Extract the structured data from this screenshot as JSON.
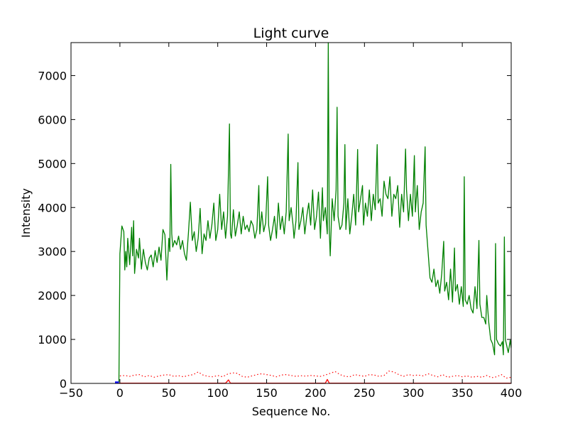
{
  "chart_data": {
    "type": "line",
    "title": "Light curve",
    "xlabel": "Sequence No.",
    "ylabel": "Intensity",
    "xlim": [
      -50,
      400
    ],
    "ylim": [
      0,
      7750
    ],
    "xticks": [
      -50,
      0,
      50,
      100,
      150,
      200,
      250,
      300,
      350,
      400
    ],
    "yticks": [
      0,
      1000,
      2000,
      3000,
      4000,
      5000,
      6000,
      7000
    ],
    "xtick_labels": [
      "−50",
      "0",
      "50",
      "100",
      "150",
      "200",
      "250",
      "300",
      "350",
      "400"
    ],
    "ytick_labels": [
      "0",
      "1000",
      "2000",
      "3000",
      "4000",
      "5000",
      "6000",
      "7000"
    ],
    "grid": false,
    "series": [
      {
        "color": "#008000",
        "style": "solid",
        "points": [
          [
            -1,
            30
          ],
          [
            0,
            2950
          ],
          [
            2,
            3580
          ],
          [
            4,
            3450
          ],
          [
            5,
            2580
          ],
          [
            6,
            3000
          ],
          [
            7,
            2650
          ],
          [
            8,
            3300
          ],
          [
            10,
            2700
          ],
          [
            12,
            3550
          ],
          [
            13,
            2900
          ],
          [
            14,
            3700
          ],
          [
            15,
            2500
          ],
          [
            17,
            3050
          ],
          [
            19,
            2850
          ],
          [
            20,
            3300
          ],
          [
            22,
            2600
          ],
          [
            24,
            3050
          ],
          [
            26,
            2750
          ],
          [
            28,
            2580
          ],
          [
            30,
            2850
          ],
          [
            32,
            2920
          ],
          [
            34,
            2650
          ],
          [
            36,
            3020
          ],
          [
            38,
            2750
          ],
          [
            40,
            3100
          ],
          [
            42,
            2800
          ],
          [
            44,
            3500
          ],
          [
            46,
            3380
          ],
          [
            48,
            2350
          ],
          [
            50,
            3300
          ],
          [
            51,
            3000
          ],
          [
            52,
            4980
          ],
          [
            53,
            3400
          ],
          [
            54,
            3100
          ],
          [
            56,
            3250
          ],
          [
            58,
            3150
          ],
          [
            60,
            3350
          ],
          [
            62,
            3050
          ],
          [
            64,
            3250
          ],
          [
            66,
            2950
          ],
          [
            68,
            2800
          ],
          [
            70,
            3400
          ],
          [
            72,
            4120
          ],
          [
            74,
            3250
          ],
          [
            76,
            3450
          ],
          [
            78,
            3000
          ],
          [
            80,
            3300
          ],
          [
            82,
            3980
          ],
          [
            84,
            2950
          ],
          [
            86,
            3400
          ],
          [
            88,
            3250
          ],
          [
            90,
            3700
          ],
          [
            92,
            3300
          ],
          [
            94,
            3600
          ],
          [
            96,
            4100
          ],
          [
            98,
            3250
          ],
          [
            100,
            3500
          ],
          [
            102,
            4300
          ],
          [
            104,
            3500
          ],
          [
            106,
            3900
          ],
          [
            108,
            3300
          ],
          [
            110,
            3800
          ],
          [
            112,
            5900
          ],
          [
            113,
            3400
          ],
          [
            114,
            3300
          ],
          [
            116,
            3950
          ],
          [
            118,
            3350
          ],
          [
            120,
            3600
          ],
          [
            122,
            3900
          ],
          [
            124,
            3400
          ],
          [
            126,
            3800
          ],
          [
            128,
            3500
          ],
          [
            130,
            3600
          ],
          [
            132,
            3450
          ],
          [
            134,
            3700
          ],
          [
            136,
            3600
          ],
          [
            138,
            3300
          ],
          [
            140,
            3500
          ],
          [
            142,
            4500
          ],
          [
            143,
            3400
          ],
          [
            145,
            3900
          ],
          [
            147,
            3450
          ],
          [
            149,
            3650
          ],
          [
            151,
            4700
          ],
          [
            152,
            3600
          ],
          [
            154,
            3250
          ],
          [
            156,
            3500
          ],
          [
            158,
            3800
          ],
          [
            160,
            3300
          ],
          [
            162,
            4100
          ],
          [
            164,
            3500
          ],
          [
            166,
            3800
          ],
          [
            168,
            3400
          ],
          [
            170,
            3900
          ],
          [
            172,
            5670
          ],
          [
            173,
            3700
          ],
          [
            175,
            4000
          ],
          [
            177,
            3600
          ],
          [
            178,
            3300
          ],
          [
            180,
            3700
          ],
          [
            182,
            5020
          ],
          [
            183,
            3500
          ],
          [
            185,
            3700
          ],
          [
            187,
            4000
          ],
          [
            189,
            3400
          ],
          [
            191,
            3800
          ],
          [
            193,
            4100
          ],
          [
            195,
            3600
          ],
          [
            197,
            4400
          ],
          [
            199,
            3500
          ],
          [
            201,
            3800
          ],
          [
            203,
            4350
          ],
          [
            205,
            3300
          ],
          [
            207,
            4450
          ],
          [
            208,
            3700
          ],
          [
            210,
            4000
          ],
          [
            212,
            3400
          ],
          [
            213,
            7750
          ],
          [
            214,
            3500
          ],
          [
            215,
            2900
          ],
          [
            217,
            4200
          ],
          [
            219,
            3700
          ],
          [
            221,
            4400
          ],
          [
            222,
            6280
          ],
          [
            223,
            3800
          ],
          [
            225,
            3500
          ],
          [
            227,
            3600
          ],
          [
            229,
            4100
          ],
          [
            230,
            5430
          ],
          [
            231,
            3500
          ],
          [
            233,
            4200
          ],
          [
            235,
            3400
          ],
          [
            237,
            3800
          ],
          [
            239,
            4300
          ],
          [
            241,
            3600
          ],
          [
            243,
            5320
          ],
          [
            244,
            3900
          ],
          [
            246,
            4200
          ],
          [
            248,
            4500
          ],
          [
            249,
            3600
          ],
          [
            251,
            4100
          ],
          [
            253,
            3800
          ],
          [
            255,
            4400
          ],
          [
            257,
            3700
          ],
          [
            259,
            4300
          ],
          [
            261,
            3950
          ],
          [
            263,
            5430
          ],
          [
            264,
            4100
          ],
          [
            266,
            4200
          ],
          [
            268,
            3800
          ],
          [
            270,
            4600
          ],
          [
            272,
            4300
          ],
          [
            274,
            4200
          ],
          [
            276,
            4700
          ],
          [
            278,
            3800
          ],
          [
            280,
            4300
          ],
          [
            282,
            4200
          ],
          [
            284,
            4500
          ],
          [
            286,
            3550
          ],
          [
            288,
            4300
          ],
          [
            290,
            3900
          ],
          [
            292,
            5330
          ],
          [
            293,
            4400
          ],
          [
            295,
            3700
          ],
          [
            297,
            4300
          ],
          [
            299,
            3800
          ],
          [
            301,
            5180
          ],
          [
            302,
            3900
          ],
          [
            304,
            4500
          ],
          [
            306,
            3500
          ],
          [
            308,
            3900
          ],
          [
            310,
            4100
          ],
          [
            312,
            5380
          ],
          [
            313,
            3600
          ],
          [
            315,
            3000
          ],
          [
            317,
            2400
          ],
          [
            319,
            2300
          ],
          [
            321,
            2600
          ],
          [
            323,
            2200
          ],
          [
            325,
            2350
          ],
          [
            327,
            2050
          ],
          [
            329,
            2500
          ],
          [
            331,
            3230
          ],
          [
            332,
            2100
          ],
          [
            334,
            2300
          ],
          [
            336,
            1900
          ],
          [
            338,
            2600
          ],
          [
            340,
            1850
          ],
          [
            342,
            3080
          ],
          [
            343,
            2100
          ],
          [
            345,
            2250
          ],
          [
            347,
            1800
          ],
          [
            349,
            2200
          ],
          [
            351,
            1750
          ],
          [
            352,
            4700
          ],
          [
            353,
            1900
          ],
          [
            355,
            1800
          ],
          [
            357,
            2000
          ],
          [
            359,
            1700
          ],
          [
            361,
            1600
          ],
          [
            363,
            2200
          ],
          [
            365,
            1700
          ],
          [
            367,
            3250
          ],
          [
            368,
            1800
          ],
          [
            370,
            1500
          ],
          [
            372,
            1500
          ],
          [
            374,
            1350
          ],
          [
            375,
            2000
          ],
          [
            377,
            1400
          ],
          [
            379,
            1000
          ],
          [
            381,
            900
          ],
          [
            383,
            650
          ],
          [
            384,
            3180
          ],
          [
            385,
            1000
          ],
          [
            387,
            900
          ],
          [
            389,
            850
          ],
          [
            391,
            950
          ],
          [
            392,
            650
          ],
          [
            393,
            3330
          ],
          [
            394,
            1000
          ],
          [
            395,
            900
          ],
          [
            397,
            700
          ],
          [
            399,
            980
          ],
          [
            400,
            800
          ]
        ]
      },
      {
        "color": "#ff0000",
        "style": "dotted",
        "points": [
          [
            0,
            170
          ],
          [
            5,
            180
          ],
          [
            10,
            160
          ],
          [
            15,
            190
          ],
          [
            20,
            200
          ],
          [
            25,
            150
          ],
          [
            30,
            180
          ],
          [
            35,
            140
          ],
          [
            40,
            170
          ],
          [
            45,
            190
          ],
          [
            50,
            200
          ],
          [
            55,
            160
          ],
          [
            60,
            175
          ],
          [
            65,
            150
          ],
          [
            70,
            180
          ],
          [
            75,
            200
          ],
          [
            80,
            260
          ],
          [
            85,
            190
          ],
          [
            90,
            160
          ],
          [
            95,
            150
          ],
          [
            100,
            180
          ],
          [
            105,
            150
          ],
          [
            110,
            210
          ],
          [
            115,
            240
          ],
          [
            120,
            230
          ],
          [
            125,
            160
          ],
          [
            130,
            140
          ],
          [
            135,
            170
          ],
          [
            140,
            200
          ],
          [
            145,
            220
          ],
          [
            150,
            200
          ],
          [
            155,
            180
          ],
          [
            160,
            150
          ],
          [
            165,
            190
          ],
          [
            170,
            200
          ],
          [
            175,
            180
          ],
          [
            180,
            160
          ],
          [
            185,
            175
          ],
          [
            190,
            165
          ],
          [
            195,
            180
          ],
          [
            200,
            170
          ],
          [
            205,
            160
          ],
          [
            210,
            190
          ],
          [
            215,
            230
          ],
          [
            220,
            270
          ],
          [
            225,
            200
          ],
          [
            230,
            160
          ],
          [
            235,
            150
          ],
          [
            240,
            200
          ],
          [
            245,
            180
          ],
          [
            250,
            160
          ],
          [
            255,
            200
          ],
          [
            260,
            190
          ],
          [
            265,
            160
          ],
          [
            270,
            180
          ],
          [
            275,
            280
          ],
          [
            280,
            260
          ],
          [
            285,
            200
          ],
          [
            290,
            160
          ],
          [
            295,
            200
          ],
          [
            300,
            180
          ],
          [
            305,
            190
          ],
          [
            310,
            170
          ],
          [
            315,
            220
          ],
          [
            320,
            180
          ],
          [
            325,
            150
          ],
          [
            330,
            200
          ],
          [
            335,
            140
          ],
          [
            340,
            160
          ],
          [
            345,
            180
          ],
          [
            350,
            150
          ],
          [
            355,
            170
          ],
          [
            360,
            140
          ],
          [
            365,
            160
          ],
          [
            370,
            140
          ],
          [
            375,
            180
          ],
          [
            380,
            130
          ],
          [
            385,
            150
          ],
          [
            390,
            200
          ],
          [
            395,
            120
          ],
          [
            400,
            140
          ]
        ]
      },
      {
        "color": "#ff0000",
        "style": "solid",
        "points": [
          [
            -1,
            5
          ],
          [
            108,
            5
          ],
          [
            111,
            80
          ],
          [
            113,
            5
          ],
          [
            210,
            5
          ],
          [
            212,
            90
          ],
          [
            214,
            5
          ],
          [
            400,
            5
          ]
        ]
      },
      {
        "color": "#0000ff",
        "style": "solid",
        "points": [
          [
            -5,
            20
          ],
          [
            -1,
            20
          ]
        ]
      }
    ]
  }
}
